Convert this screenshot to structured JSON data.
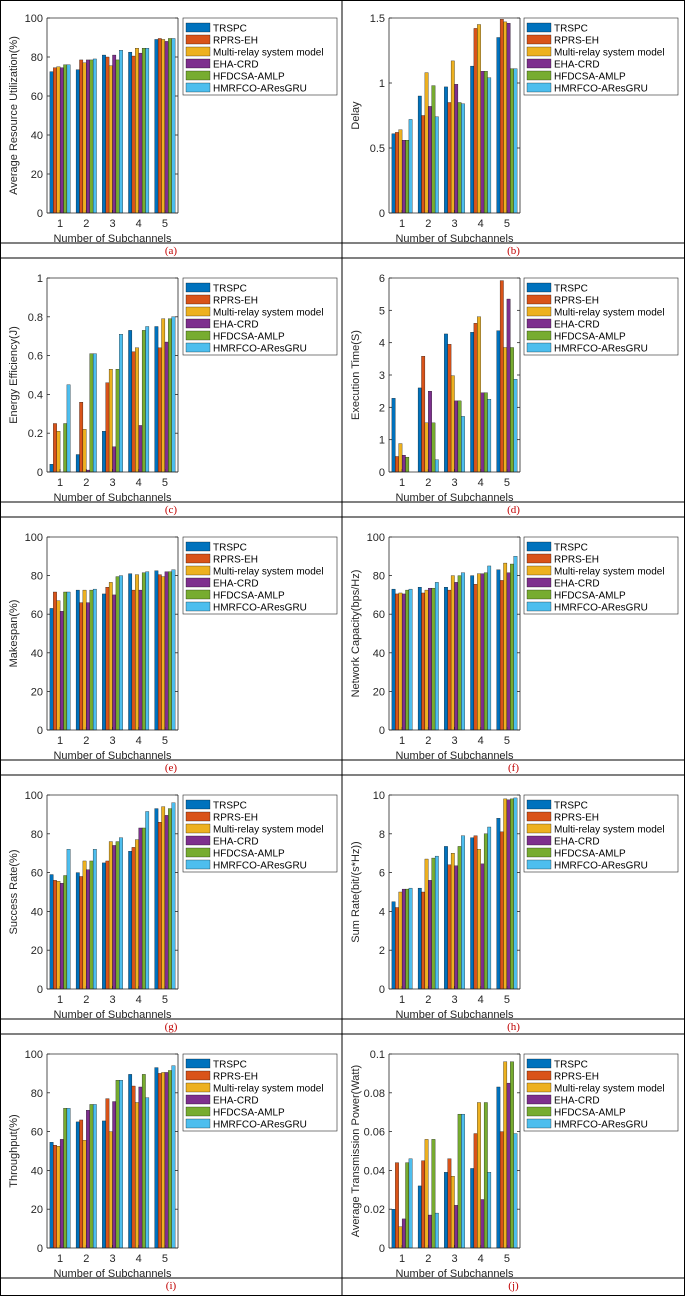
{
  "legend": [
    "TRSPC",
    "RPRS-EH",
    "Multi-relay system model",
    "EHA-CRD",
    "HFDCSA-AMLP",
    "HMRFCO-AResGRU"
  ],
  "colors": [
    "#0072BD",
    "#D95319",
    "#EDB120",
    "#7E2F8E",
    "#77AC30",
    "#4DBEEE"
  ],
  "chart_data": [
    {
      "type": "bar",
      "caption": "(a)",
      "categories": [
        "1",
        "2",
        "3",
        "4",
        "5"
      ],
      "xlabel": "Number of Subchannels",
      "ylabel": "Average Resource Utilization(%)",
      "ylim": [
        0,
        100
      ],
      "yticks": [
        "0",
        "20",
        "40",
        "60",
        "80",
        "100"
      ],
      "series": [
        {
          "name": "TRSPC",
          "values": [
            72.5,
            73.5,
            81,
            82.5,
            89
          ]
        },
        {
          "name": "RPRS-EH",
          "values": [
            74.5,
            78.5,
            80,
            80.5,
            89.5
          ]
        },
        {
          "name": "Multi-relay system model",
          "values": [
            75,
            77,
            75.5,
            84.5,
            89
          ]
        },
        {
          "name": "EHA-CRD",
          "values": [
            74.5,
            78.5,
            81,
            82,
            88
          ]
        },
        {
          "name": "HFDCSA-AMLP",
          "values": [
            76,
            78.5,
            78.5,
            84.5,
            89.5
          ]
        },
        {
          "name": "HMRFCO-AResGRU",
          "values": [
            76,
            79,
            83.5,
            84.5,
            89.5
          ]
        }
      ]
    },
    {
      "type": "bar",
      "caption": "(b)",
      "categories": [
        "1",
        "2",
        "3",
        "4",
        "5"
      ],
      "xlabel": "Number of Subchannels",
      "ylabel": "Delay",
      "ylim": [
        0,
        1.5
      ],
      "yticks": [
        "0",
        "0.5",
        "1",
        "1.5"
      ],
      "series": [
        {
          "name": "TRSPC",
          "values": [
            0.61,
            0.9,
            0.97,
            1.13,
            1.35
          ]
        },
        {
          "name": "RPRS-EH",
          "values": [
            0.62,
            0.75,
            0.85,
            1.42,
            1.49
          ]
        },
        {
          "name": "Multi-relay system model",
          "values": [
            0.64,
            1.08,
            1.17,
            1.45,
            1.47
          ]
        },
        {
          "name": "EHA-CRD",
          "values": [
            0.56,
            0.82,
            0.99,
            1.09,
            1.46
          ]
        },
        {
          "name": "HFDCSA-AMLP",
          "values": [
            0.56,
            0.98,
            0.85,
            1.09,
            1.11
          ]
        },
        {
          "name": "HMRFCO-AResGRU",
          "values": [
            0.72,
            0.74,
            0.84,
            1.04,
            1.11
          ]
        }
      ]
    },
    {
      "type": "bar",
      "caption": "(c)",
      "categories": [
        "1",
        "2",
        "3",
        "4",
        "5"
      ],
      "xlabel": "Number of Subchannels",
      "ylabel": "Energy Efficiency(J)",
      "ylim": [
        0,
        1
      ],
      "yticks": [
        "0",
        "0.2",
        "0.4",
        "0.6",
        "0.8",
        "1"
      ],
      "series": [
        {
          "name": "TRSPC",
          "values": [
            0.04,
            0.09,
            0.21,
            0.73,
            0.75
          ]
        },
        {
          "name": "RPRS-EH",
          "values": [
            0.25,
            0.36,
            0.46,
            0.62,
            0.64
          ]
        },
        {
          "name": "Multi-relay system model",
          "values": [
            0.21,
            0.22,
            0.53,
            0.64,
            0.79
          ]
        },
        {
          "name": "EHA-CRD",
          "values": [
            0.0,
            0.01,
            0.13,
            0.24,
            0.67
          ]
        },
        {
          "name": "HFDCSA-AMLP",
          "values": [
            0.25,
            0.61,
            0.53,
            0.73,
            0.79
          ]
        },
        {
          "name": "HMRFCO-AResGRU",
          "values": [
            0.45,
            0.61,
            0.71,
            0.75,
            0.8
          ]
        }
      ]
    },
    {
      "type": "bar",
      "caption": "(d)",
      "categories": [
        "1",
        "2",
        "3",
        "4",
        "5"
      ],
      "xlabel": "Number of Subchannels",
      "ylabel": "Execution Time(S)",
      "ylim": [
        0,
        6
      ],
      "yticks": [
        "0",
        "1",
        "2",
        "3",
        "4",
        "5",
        "6"
      ],
      "series": [
        {
          "name": "TRSPC",
          "values": [
            2.28,
            2.6,
            4.27,
            4.32,
            4.37
          ]
        },
        {
          "name": "RPRS-EH",
          "values": [
            0.48,
            3.58,
            3.95,
            4.6,
            5.92
          ]
        },
        {
          "name": "Multi-relay system model",
          "values": [
            0.88,
            1.52,
            2.98,
            4.8,
            3.85
          ]
        },
        {
          "name": "EHA-CRD",
          "values": [
            0.52,
            2.5,
            2.2,
            2.45,
            5.35
          ]
        },
        {
          "name": "HFDCSA-AMLP",
          "values": [
            0.46,
            1.52,
            2.2,
            2.45,
            3.85
          ]
        },
        {
          "name": "HMRFCO-AResGRU",
          "values": [
            0.0,
            0.38,
            1.72,
            2.25,
            2.87
          ]
        }
      ]
    },
    {
      "type": "bar",
      "caption": "(e)",
      "categories": [
        "1",
        "2",
        "3",
        "4",
        "5"
      ],
      "xlabel": "Number of Subchannels",
      "ylabel": "Makespan(%)",
      "ylim": [
        0,
        100
      ],
      "yticks": [
        "0",
        "20",
        "40",
        "60",
        "80",
        "100"
      ],
      "series": [
        {
          "name": "TRSPC",
          "values": [
            63,
            72.5,
            70.5,
            81,
            82.5
          ]
        },
        {
          "name": "RPRS-EH",
          "values": [
            71.5,
            66,
            74,
            72.5,
            80.5
          ]
        },
        {
          "name": "Multi-relay system model",
          "values": [
            67,
            72.5,
            76.5,
            80.5,
            79.5
          ]
        },
        {
          "name": "EHA-CRD",
          "values": [
            61.5,
            66,
            70,
            72.5,
            82
          ]
        },
        {
          "name": "HFDCSA-AMLP",
          "values": [
            71.5,
            72.5,
            79.5,
            81.5,
            82
          ]
        },
        {
          "name": "HMRFCO-AResGRU",
          "values": [
            71.5,
            73,
            80,
            82,
            83
          ]
        }
      ]
    },
    {
      "type": "bar",
      "caption": "(f)",
      "categories": [
        "1",
        "2",
        "3",
        "4",
        "5"
      ],
      "xlabel": "Number of Subchannels",
      "ylabel": "Network Capacity(bps/Hz)",
      "ylim": [
        0,
        100
      ],
      "yticks": [
        "0",
        "20",
        "40",
        "60",
        "80",
        "100"
      ],
      "series": [
        {
          "name": "TRSPC",
          "values": [
            73,
            74,
            74,
            80,
            83
          ]
        },
        {
          "name": "RPRS-EH",
          "values": [
            70.5,
            71,
            72.5,
            75.5,
            77.5
          ]
        },
        {
          "name": "Multi-relay system model",
          "values": [
            71,
            72.5,
            80,
            81,
            86.5
          ]
        },
        {
          "name": "EHA-CRD",
          "values": [
            70.5,
            73.5,
            76.5,
            81,
            81.5
          ]
        },
        {
          "name": "HFDCSA-AMLP",
          "values": [
            72.5,
            73.5,
            80,
            81.5,
            86
          ]
        },
        {
          "name": "HMRFCO-AResGRU",
          "values": [
            73,
            76.5,
            81.5,
            85,
            90
          ]
        }
      ]
    },
    {
      "type": "bar",
      "caption": "(g)",
      "categories": [
        "1",
        "2",
        "3",
        "4",
        "5"
      ],
      "xlabel": "Number of Subchannels",
      "ylabel": "Success Rate(%)",
      "ylim": [
        0,
        100
      ],
      "yticks": [
        "0",
        "20",
        "40",
        "60",
        "80",
        "100"
      ],
      "series": [
        {
          "name": "TRSPC",
          "values": [
            59,
            60,
            65,
            71,
            93
          ]
        },
        {
          "name": "RPRS-EH",
          "values": [
            56,
            58,
            66,
            73,
            86
          ]
        },
        {
          "name": "Multi-relay system model",
          "values": [
            55.5,
            66,
            76,
            77,
            94
          ]
        },
        {
          "name": "EHA-CRD",
          "values": [
            54.5,
            61.5,
            74,
            83,
            89.5
          ]
        },
        {
          "name": "HFDCSA-AMLP",
          "values": [
            58.5,
            66,
            76,
            83,
            93
          ]
        },
        {
          "name": "HMRFCO-AResGRU",
          "values": [
            72,
            72,
            78,
            91.5,
            96
          ]
        }
      ]
    },
    {
      "type": "bar",
      "caption": "(h)",
      "categories": [
        "1",
        "2",
        "3",
        "4",
        "5"
      ],
      "xlabel": "Number of Subchannels",
      "ylabel": "Sum Rate(bit/(s*Hz))",
      "ylim": [
        0,
        10
      ],
      "yticks": [
        "0",
        "2",
        "4",
        "6",
        "8",
        "10"
      ],
      "series": [
        {
          "name": "TRSPC",
          "values": [
            4.5,
            5.2,
            7.35,
            7.8,
            8.8
          ]
        },
        {
          "name": "RPRS-EH",
          "values": [
            4.2,
            5.0,
            6.4,
            7.9,
            8.1
          ]
        },
        {
          "name": "Multi-relay system model",
          "values": [
            5.0,
            6.7,
            7.0,
            7.2,
            9.8
          ]
        },
        {
          "name": "EHA-CRD",
          "values": [
            5.15,
            5.6,
            6.35,
            6.45,
            9.75
          ]
        },
        {
          "name": "HFDCSA-AMLP",
          "values": [
            5.15,
            6.75,
            7.35,
            8.0,
            9.8
          ]
        },
        {
          "name": "HMRFCO-AResGRU",
          "values": [
            5.2,
            6.85,
            7.9,
            8.35,
            9.85
          ]
        }
      ]
    },
    {
      "type": "bar",
      "caption": "(i)",
      "categories": [
        "1",
        "2",
        "3",
        "4",
        "5"
      ],
      "xlabel": "Number of Subchannels",
      "ylabel": "Throughput(%)",
      "ylim": [
        0,
        100
      ],
      "yticks": [
        "0",
        "20",
        "40",
        "60",
        "80",
        "100"
      ],
      "series": [
        {
          "name": "TRSPC",
          "values": [
            54.5,
            65,
            65.5,
            89.5,
            93
          ]
        },
        {
          "name": "RPRS-EH",
          "values": [
            53,
            66,
            77,
            83.5,
            90
          ]
        },
        {
          "name": "Multi-relay system model",
          "values": [
            52.5,
            55.5,
            60,
            75,
            90.5
          ]
        },
        {
          "name": "EHA-CRD",
          "values": [
            56,
            71,
            75.5,
            83,
            90.5
          ]
        },
        {
          "name": "HFDCSA-AMLP",
          "values": [
            72,
            74,
            86.5,
            89.5,
            91.5
          ]
        },
        {
          "name": "HMRFCO-AResGRU",
          "values": [
            72,
            74,
            86.5,
            77.5,
            94
          ]
        }
      ]
    },
    {
      "type": "bar",
      "caption": "(j)",
      "categories": [
        "1",
        "2",
        "3",
        "4",
        "5"
      ],
      "xlabel": "Number of Subchannels",
      "ylabel": "Average Transmission Power(Watt)",
      "ylim": [
        0,
        0.1
      ],
      "yticks": [
        "0",
        "0.02",
        "0.04",
        "0.06",
        "0.08",
        "0.1"
      ],
      "series": [
        {
          "name": "TRSPC",
          "values": [
            0.02,
            0.032,
            0.039,
            0.041,
            0.083
          ]
        },
        {
          "name": "RPRS-EH",
          "values": [
            0.044,
            0.045,
            0.046,
            0.059,
            0.06
          ]
        },
        {
          "name": "Multi-relay system model",
          "values": [
            0.011,
            0.056,
            0.037,
            0.075,
            0.096
          ]
        },
        {
          "name": "EHA-CRD",
          "values": [
            0.015,
            0.017,
            0.022,
            0.025,
            0.085
          ]
        },
        {
          "name": "HFDCSA-AMLP",
          "values": [
            0.044,
            0.056,
            0.069,
            0.075,
            0.096
          ]
        },
        {
          "name": "HMRFCO-AResGRU",
          "values": [
            0.046,
            0.018,
            0.069,
            0.039,
            0.059
          ]
        }
      ]
    }
  ]
}
